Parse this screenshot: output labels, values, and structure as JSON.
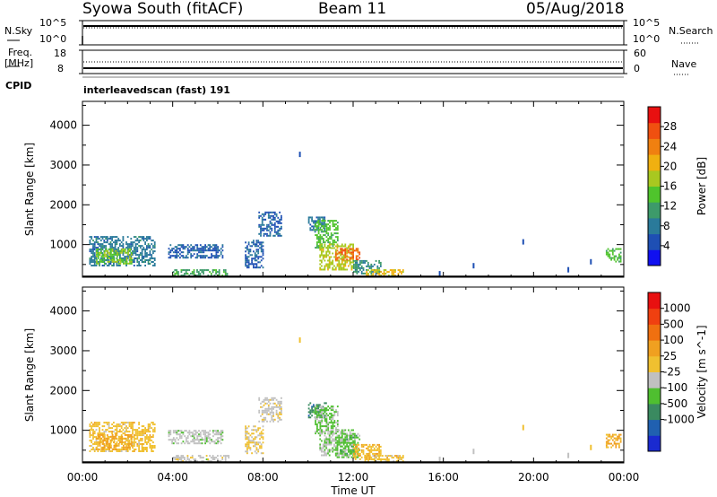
{
  "header": {
    "station": "Syowa South (fitACF)",
    "beam": "Beam 11",
    "date": "05/Aug/2018"
  },
  "top_panels": {
    "nsky_label": "N.Sky",
    "nsearch_label": "N.Search",
    "nsky_ticks": [
      "10^5",
      "10^0"
    ],
    "nsearch_ticks": [
      "10^5",
      "10^0"
    ],
    "freq_label_1": "Freq.",
    "freq_label_2": "[MHz]",
    "freq_ticks": [
      "18",
      "8"
    ],
    "nave_label": "Nave",
    "nave_ticks": [
      "60",
      "0"
    ],
    "cpid_label": "CPID",
    "cpid_text": "interleavedscan (fast) 191"
  },
  "chart_data": [
    {
      "type": "heatmap",
      "name": "power",
      "ylabel": "Slant Range [km]",
      "ylim": [
        180,
        4600
      ],
      "xlim": [
        0,
        24
      ],
      "yticks": [
        "1000",
        "2000",
        "3000",
        "4000"
      ],
      "xticks": [
        "00:00",
        "04:00",
        "08:00",
        "12:00",
        "16:00",
        "20:00",
        "00:00"
      ],
      "colorbar_label": "Power [dB]",
      "colorbar_ticks": [
        "4",
        "8",
        "12",
        "16",
        "20",
        "24",
        "28"
      ],
      "colorbar_colors": [
        "#1010f0",
        "#1e4fb4",
        "#2a7a9a",
        "#3d9a6a",
        "#4fc42c",
        "#a8c820",
        "#f0b010",
        "#f08010",
        "#f05010",
        "#e81010"
      ],
      "colorbar_range": [
        0,
        32
      ],
      "regions": [
        {
          "t0": 0.3,
          "t1": 3.2,
          "r0": 450,
          "r1": 1200,
          "value": 8
        },
        {
          "t0": 0.6,
          "t1": 2.2,
          "r0": 500,
          "r1": 900,
          "value": 16
        },
        {
          "t0": 3.8,
          "t1": 6.2,
          "r0": 650,
          "r1": 1000,
          "value": 6
        },
        {
          "t0": 4.0,
          "t1": 6.5,
          "r0": 200,
          "r1": 350,
          "value": 12
        },
        {
          "t0": 7.2,
          "t1": 8.0,
          "r0": 400,
          "r1": 1100,
          "value": 6
        },
        {
          "t0": 7.8,
          "t1": 8.8,
          "r0": 1200,
          "r1": 1800,
          "value": 6
        },
        {
          "t0": 10.0,
          "t1": 10.8,
          "r0": 1300,
          "r1": 1700,
          "value": 8
        },
        {
          "t0": 10.3,
          "t1": 11.3,
          "r0": 900,
          "r1": 1600,
          "value": 14
        },
        {
          "t0": 10.5,
          "t1": 12.0,
          "r0": 350,
          "r1": 1000,
          "value": 18
        },
        {
          "t0": 11.2,
          "t1": 12.3,
          "r0": 600,
          "r1": 900,
          "value": 26
        },
        {
          "t0": 12.0,
          "t1": 13.2,
          "r0": 250,
          "r1": 600,
          "value": 10
        },
        {
          "t0": 12.5,
          "t1": 14.2,
          "r0": 200,
          "r1": 350,
          "value": 20
        },
        {
          "t0": 23.2,
          "t1": 23.9,
          "r0": 550,
          "r1": 900,
          "value": 14
        }
      ],
      "sparse": [
        {
          "t": 9.6,
          "r": 3200,
          "value": 6
        },
        {
          "t": 15.8,
          "r": 200,
          "value": 6
        },
        {
          "t": 17.3,
          "r": 400,
          "value": 6
        },
        {
          "t": 19.5,
          "r": 1000,
          "value": 6
        },
        {
          "t": 21.5,
          "r": 300,
          "value": 6
        },
        {
          "t": 22.5,
          "r": 500,
          "value": 6
        }
      ]
    },
    {
      "type": "heatmap",
      "name": "velocity",
      "ylabel": "Slant Range [km]",
      "ylim": [
        180,
        4600
      ],
      "xlim": [
        0,
        24
      ],
      "yticks": [
        "1000",
        "2000",
        "3000",
        "4000"
      ],
      "xticks": [
        "00:00",
        "04:00",
        "08:00",
        "12:00",
        "16:00",
        "20:00",
        "00:00"
      ],
      "xlabel": "Time UT",
      "colorbar_label": "Velocity [m s^-1]",
      "colorbar_ticks": [
        "1000",
        "500",
        "100",
        "25",
        "-25",
        "-100",
        "-500",
        "-1000"
      ],
      "colorbar_colors": [
        "#1a2ad0",
        "#2060b0",
        "#3a8a60",
        "#4fbf30",
        "#c0c0c0",
        "#f0c030",
        "#f0a020",
        "#f07010",
        "#f04010",
        "#e81010"
      ],
      "colorbar_range": [
        -1200,
        1200
      ],
      "regions": [
        {
          "t0": 0.3,
          "t1": 3.2,
          "r0": 450,
          "r1": 1200,
          "value": 120
        },
        {
          "t0": 0.6,
          "t1": 2.2,
          "r0": 500,
          "r1": 900,
          "value": 300
        },
        {
          "t0": 3.8,
          "t1": 6.2,
          "r0": 650,
          "r1": 1000,
          "value": -150
        },
        {
          "t0": 4.0,
          "t1": 6.5,
          "r0": 200,
          "r1": 350,
          "value": -100
        },
        {
          "t0": 7.2,
          "t1": 8.0,
          "r0": 400,
          "r1": 1100,
          "value": 50
        },
        {
          "t0": 7.8,
          "t1": 8.8,
          "r0": 1200,
          "r1": 1800,
          "value": -100
        },
        {
          "t0": 10.0,
          "t1": 10.8,
          "r0": 1300,
          "r1": 1700,
          "value": -600
        },
        {
          "t0": 10.3,
          "t1": 11.3,
          "r0": 900,
          "r1": 1600,
          "value": -300
        },
        {
          "t0": 10.5,
          "t1": 12.0,
          "r0": 350,
          "r1": 1000,
          "value": -200
        },
        {
          "t0": 11.2,
          "t1": 12.3,
          "r0": 300,
          "r1": 900,
          "value": -350
        },
        {
          "t0": 12.0,
          "t1": 13.2,
          "r0": 250,
          "r1": 650,
          "value": 200
        },
        {
          "t0": 12.5,
          "t1": 14.2,
          "r0": 200,
          "r1": 350,
          "value": 120
        },
        {
          "t0": 23.2,
          "t1": 23.9,
          "r0": 550,
          "r1": 900,
          "value": 300
        }
      ],
      "sparse": [
        {
          "t": 9.6,
          "r": 3200,
          "value": 50
        },
        {
          "t": 15.8,
          "r": 200,
          "value": -100
        },
        {
          "t": 17.3,
          "r": 400,
          "value": -100
        },
        {
          "t": 19.5,
          "r": 1000,
          "value": 50
        },
        {
          "t": 21.5,
          "r": 300,
          "value": -100
        },
        {
          "t": 22.5,
          "r": 500,
          "value": 120
        }
      ]
    }
  ]
}
